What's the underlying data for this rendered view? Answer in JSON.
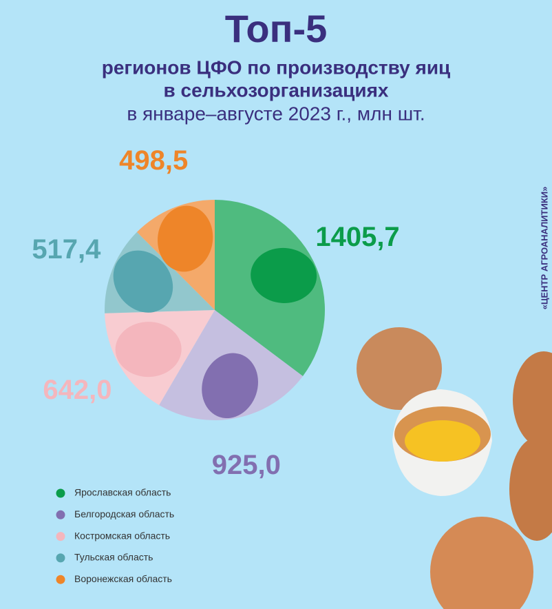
{
  "chart_data": {
    "type": "pie",
    "title": "Топ-5",
    "subtitle": [
      "регионов ЦФО по производству яиц",
      "в сельхозорганизациях"
    ],
    "period": "в январе–августе 2023 г., млн шт.",
    "source": "«ЦЕНТР АГРОАНАЛИТИКИ»",
    "categories": [
      "Ярославская область",
      "Белгородская область",
      "Костромская область",
      "Тульская область",
      "Воронежская область"
    ],
    "values": [
      1405.7,
      925.0,
      642.0,
      517.4,
      498.5
    ],
    "value_labels": [
      "1405,7",
      "925,0",
      "642,0",
      "517,4",
      "498,5"
    ],
    "colors": [
      "#0b9c4a",
      "#826fb0",
      "#f4b6bd",
      "#57a6b0",
      "#ee8529"
    ],
    "slice_colors": [
      "#4fbb7f",
      "#c5bfe0",
      "#f8ccd1",
      "#92c7cd",
      "#f4a96a"
    ]
  }
}
